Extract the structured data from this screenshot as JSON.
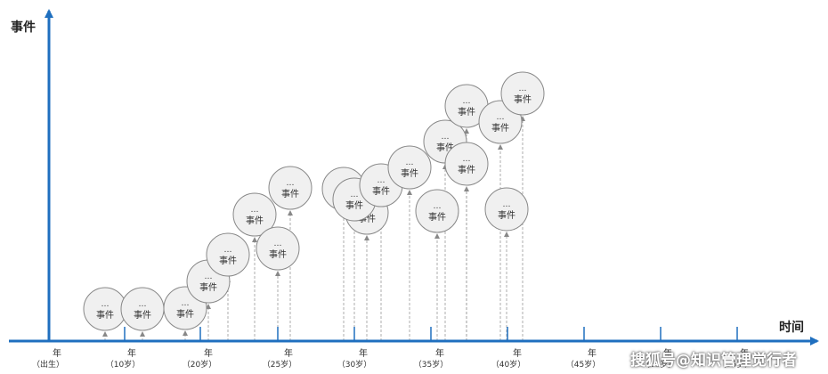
{
  "axes": {
    "y_title": "事件",
    "x_title": "时间",
    "color": "#1f6fbf"
  },
  "ticks": [
    {
      "year": "年",
      "age": "（出生）"
    },
    {
      "year": "年",
      "age": "（10岁）"
    },
    {
      "year": "年",
      "age": "（20岁）"
    },
    {
      "year": "年",
      "age": "（25岁）"
    },
    {
      "year": "年",
      "age": "（30岁）"
    },
    {
      "year": "年",
      "age": "（35岁）"
    },
    {
      "year": "年",
      "age": "（40岁）"
    },
    {
      "year": "年",
      "age": "（45岁）"
    },
    {
      "year": "年",
      "age": "（50岁）"
    },
    {
      "year": "年",
      "age": "（55岁）"
    }
  ],
  "bubble": {
    "dots": "…",
    "label": "事件"
  },
  "watermark": "搜狐号@知识管理觉行者"
}
